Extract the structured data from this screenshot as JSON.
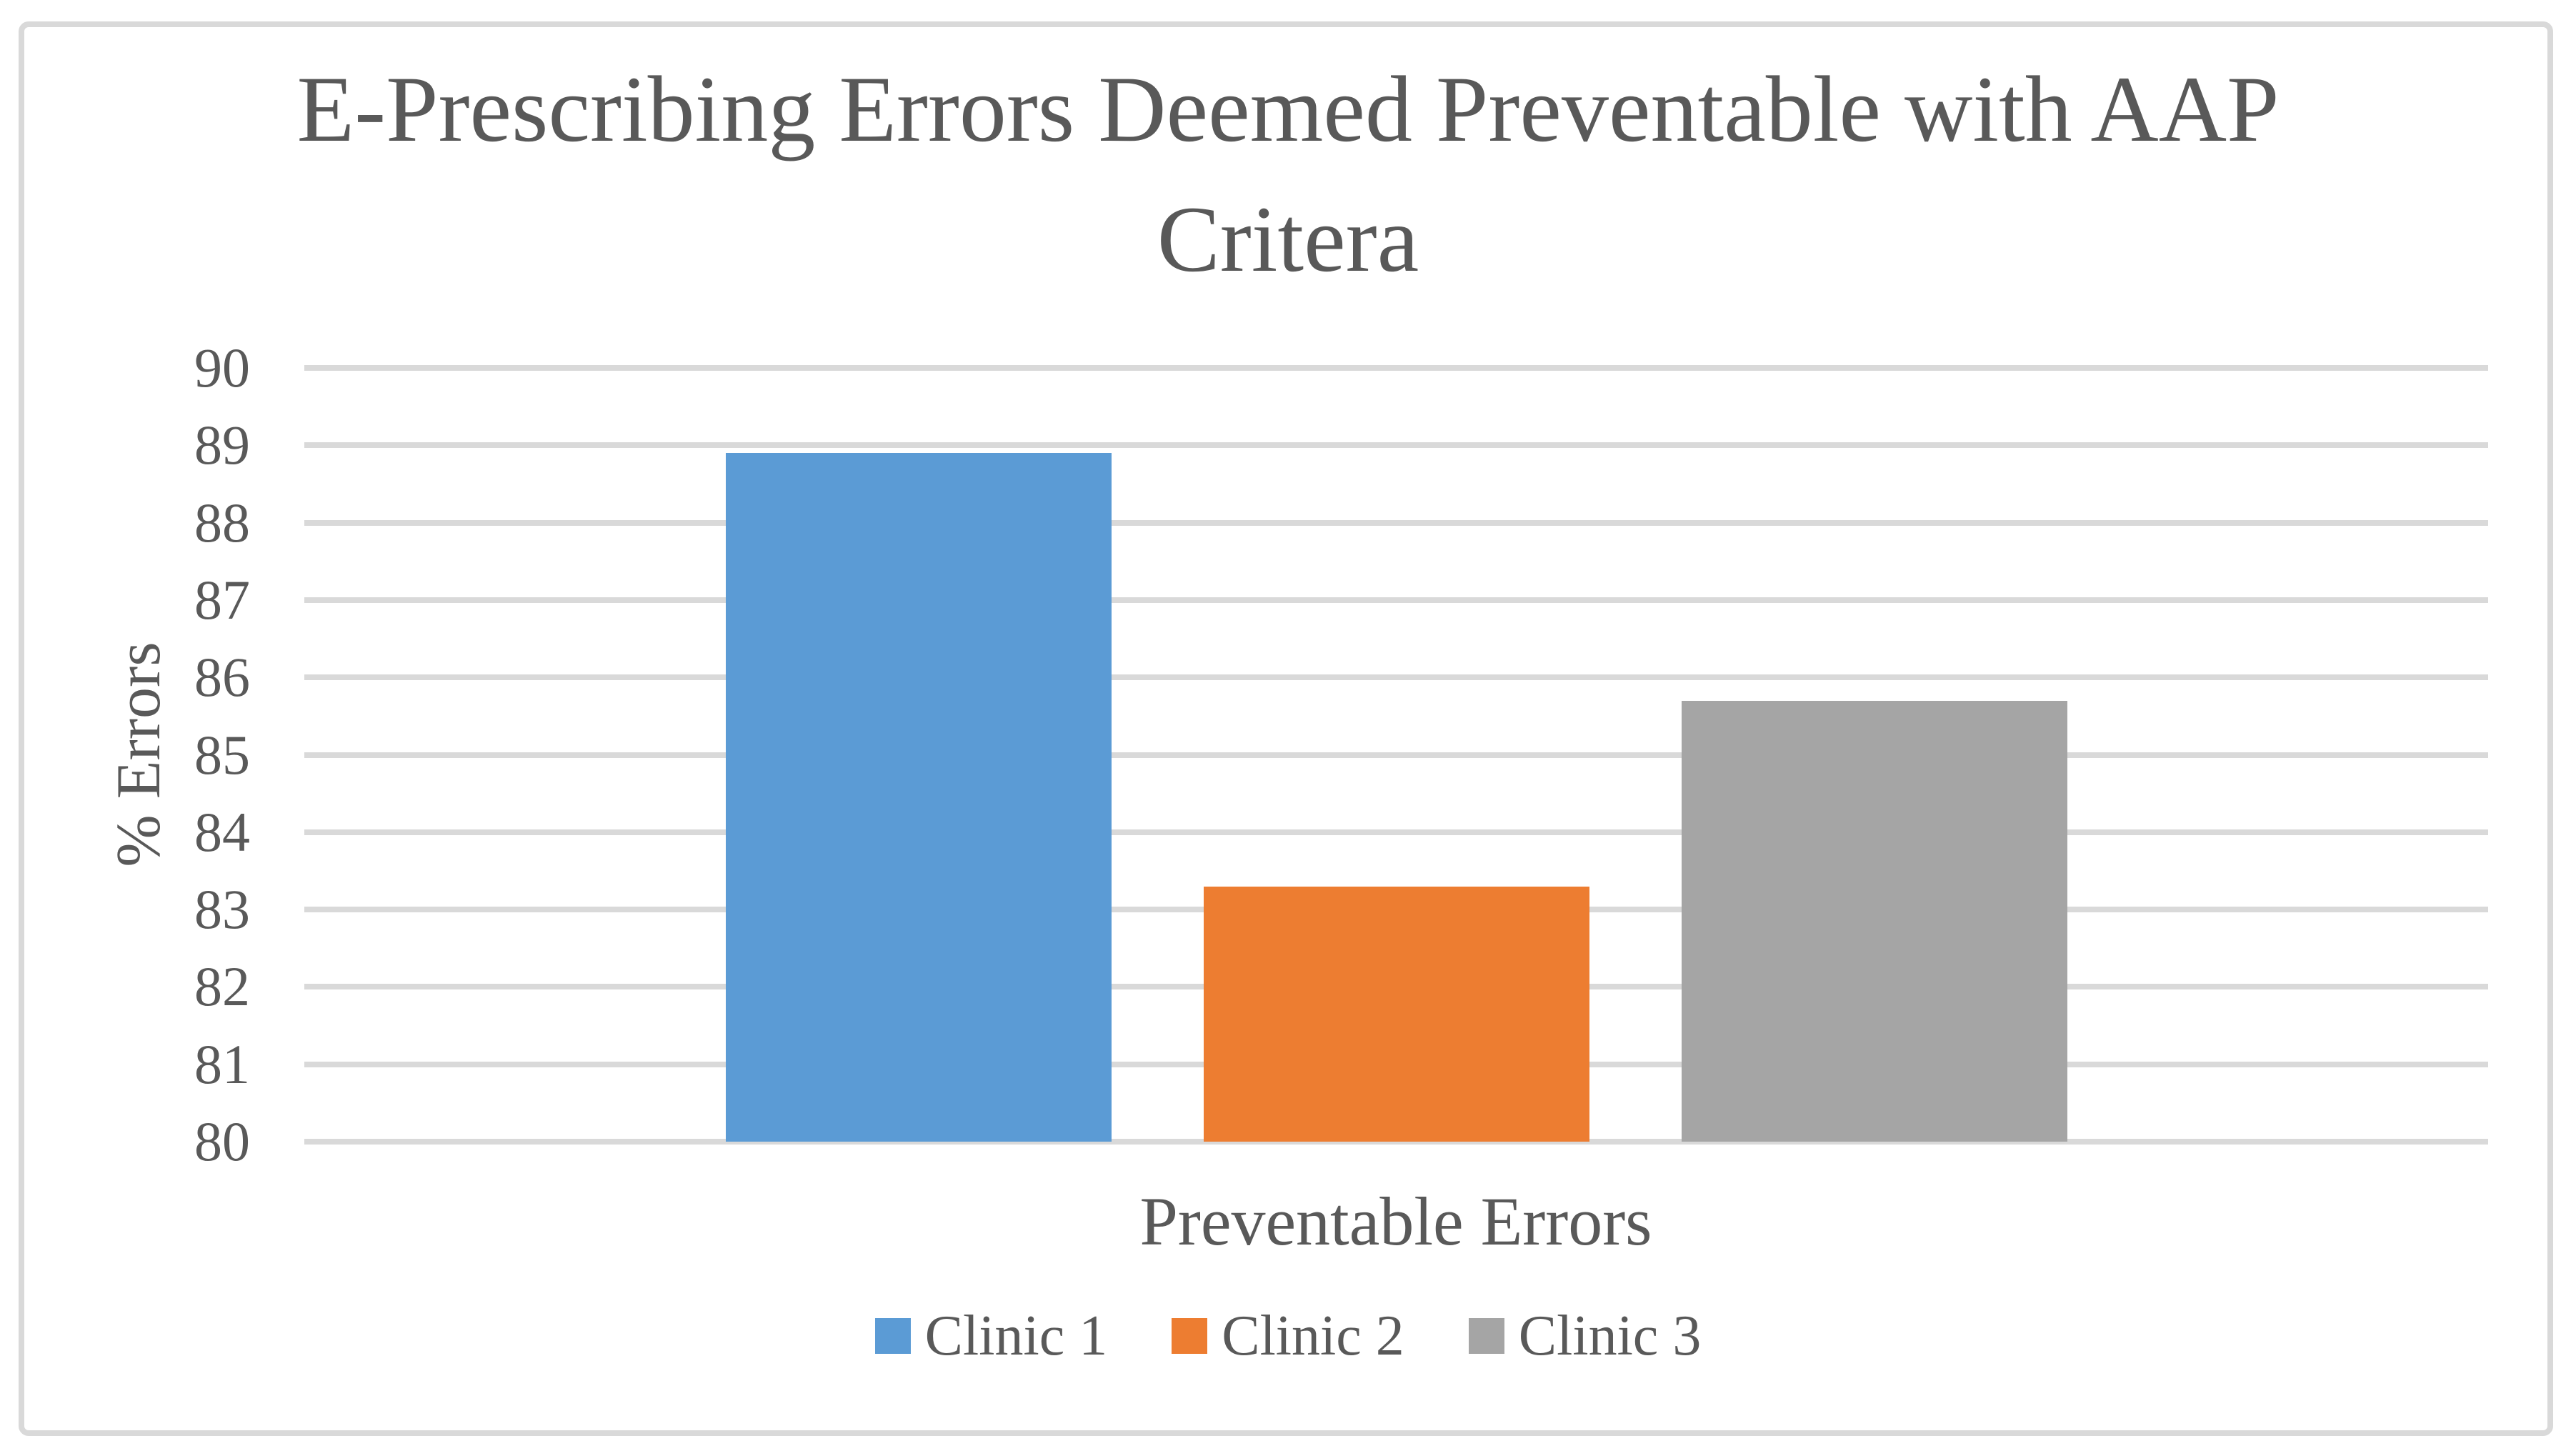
{
  "chart_data": {
    "type": "bar",
    "title": "E-Prescribing Errors Deemed Preventable with AAP Critera",
    "title_lines": [
      "E-Prescribing Errors Deemed Preventable with AAP",
      "Critera"
    ],
    "categories": [
      "Preventable Errors"
    ],
    "series": [
      {
        "name": "Clinic 1",
        "values": [
          88.9
        ],
        "color": "#5B9BD5"
      },
      {
        "name": "Clinic 2",
        "values": [
          83.3
        ],
        "color": "#ED7D31"
      },
      {
        "name": "Clinic 3",
        "values": [
          85.7
        ],
        "color": "#A5A5A5"
      }
    ],
    "xlabel": "Preventable Errors",
    "ylabel": "% Errors",
    "ylim": [
      80,
      90
    ],
    "ytick_step": 1,
    "yticks": [
      80,
      81,
      82,
      83,
      84,
      85,
      86,
      87,
      88,
      89,
      90
    ],
    "grid": "horizontal",
    "legend_position": "bottom",
    "colors": {
      "gridline": "#D9D9D9",
      "frame_border": "#D9D9D9",
      "text": "#595959",
      "background": "#FFFFFF"
    }
  }
}
